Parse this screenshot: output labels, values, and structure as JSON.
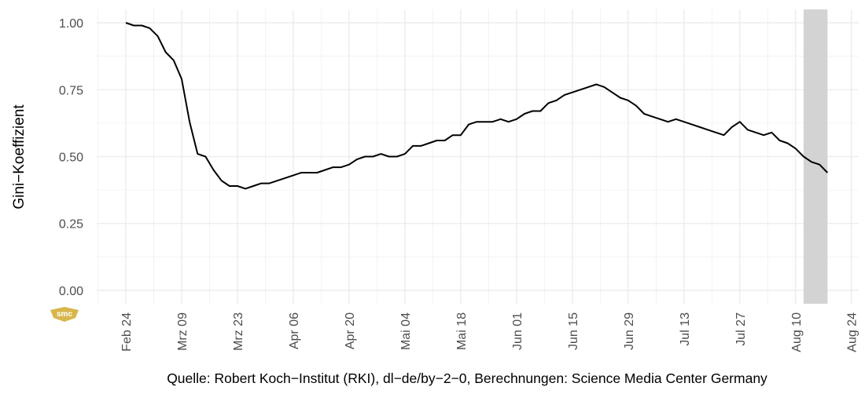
{
  "chart_data": {
    "type": "line",
    "y_label": "Gini−Koeffizient",
    "caption": "Quelle: Robert Koch−Institut (RKI), dl−de/by−2−0, Berechnungen: Science Media Center Germany",
    "logo": "smc",
    "x": [
      "Feb 24",
      "Feb 26",
      "Feb 28",
      "Mrz 01",
      "Mrz 03",
      "Mrz 05",
      "Mrz 07",
      "Mrz 09",
      "Mrz 11",
      "Mrz 13",
      "Mrz 15",
      "Mrz 17",
      "Mrz 19",
      "Mrz 21",
      "Mrz 23",
      "Mrz 25",
      "Mrz 27",
      "Mrz 29",
      "Mrz 31",
      "Apr 02",
      "Apr 04",
      "Apr 06",
      "Apr 08",
      "Apr 10",
      "Apr 12",
      "Apr 14",
      "Apr 16",
      "Apr 18",
      "Apr 20",
      "Apr 22",
      "Apr 24",
      "Apr 26",
      "Apr 28",
      "Apr 30",
      "Mai 02",
      "Mai 04",
      "Mai 06",
      "Mai 08",
      "Mai 10",
      "Mai 12",
      "Mai 14",
      "Mai 16",
      "Mai 18",
      "Mai 20",
      "Mai 22",
      "Mai 24",
      "Mai 26",
      "Mai 28",
      "Mai 30",
      "Jun 01",
      "Jun 03",
      "Jun 05",
      "Jun 07",
      "Jun 09",
      "Jun 11",
      "Jun 13",
      "Jun 15",
      "Jun 17",
      "Jun 19",
      "Jun 21",
      "Jun 23",
      "Jun 25",
      "Jun 27",
      "Jun 29",
      "Jul 01",
      "Jul 03",
      "Jul 05",
      "Jul 07",
      "Jul 09",
      "Jul 11",
      "Jul 13",
      "Jul 15",
      "Jul 17",
      "Jul 19",
      "Jul 21",
      "Jul 23",
      "Jul 25",
      "Jul 27",
      "Jul 29",
      "Jul 31",
      "Aug 02",
      "Aug 04",
      "Aug 06",
      "Aug 08",
      "Aug 10",
      "Aug 12",
      "Aug 14",
      "Aug 16",
      "Aug 18",
      "Aug 20",
      "Aug 22",
      "Aug 24"
    ],
    "values": [
      1.0,
      0.99,
      0.99,
      0.98,
      0.95,
      0.89,
      0.86,
      0.79,
      0.63,
      0.51,
      0.5,
      0.45,
      0.41,
      0.39,
      0.39,
      0.38,
      0.39,
      0.4,
      0.4,
      0.41,
      0.42,
      0.43,
      0.44,
      0.44,
      0.44,
      0.45,
      0.46,
      0.46,
      0.47,
      0.49,
      0.5,
      0.5,
      0.51,
      0.5,
      0.5,
      0.51,
      0.54,
      0.54,
      0.55,
      0.56,
      0.56,
      0.58,
      0.58,
      0.62,
      0.63,
      0.63,
      0.63,
      0.64,
      0.63,
      0.64,
      0.66,
      0.67,
      0.67,
      0.7,
      0.71,
      0.73,
      0.74,
      0.75,
      0.76,
      0.77,
      0.76,
      0.74,
      0.72,
      0.71,
      0.69,
      0.66,
      0.65,
      0.64,
      0.63,
      0.64,
      0.63,
      0.62,
      0.61,
      0.6,
      0.59,
      0.58,
      0.61,
      0.63,
      0.6,
      0.59,
      0.58,
      0.59,
      0.56,
      0.55,
      0.53,
      0.5,
      0.48,
      0.47,
      0.44,
      null,
      null,
      null
    ],
    "color": "#000000",
    "xticks": [
      "Feb 24",
      "Mrz 09",
      "Mrz 23",
      "Apr 06",
      "Apr 20",
      "Mai 04",
      "Mai 18",
      "Jun 01",
      "Jun 15",
      "Jun 29",
      "Jul 13",
      "Jul 27",
      "Aug 10",
      "Aug 24"
    ],
    "ylim": [
      -0.05,
      1.05
    ],
    "yticks": [
      {
        "value": 0,
        "label": "0.00"
      },
      {
        "value": 0.25,
        "label": "0.25"
      },
      {
        "value": 0.5,
        "label": "0.50"
      },
      {
        "value": 0.75,
        "label": "0.75"
      },
      {
        "value": 1,
        "label": "1.00"
      }
    ],
    "highlight": {
      "from": "Aug 12",
      "to": "Aug 18",
      "color": "#d3d3d3"
    },
    "grid": true
  }
}
